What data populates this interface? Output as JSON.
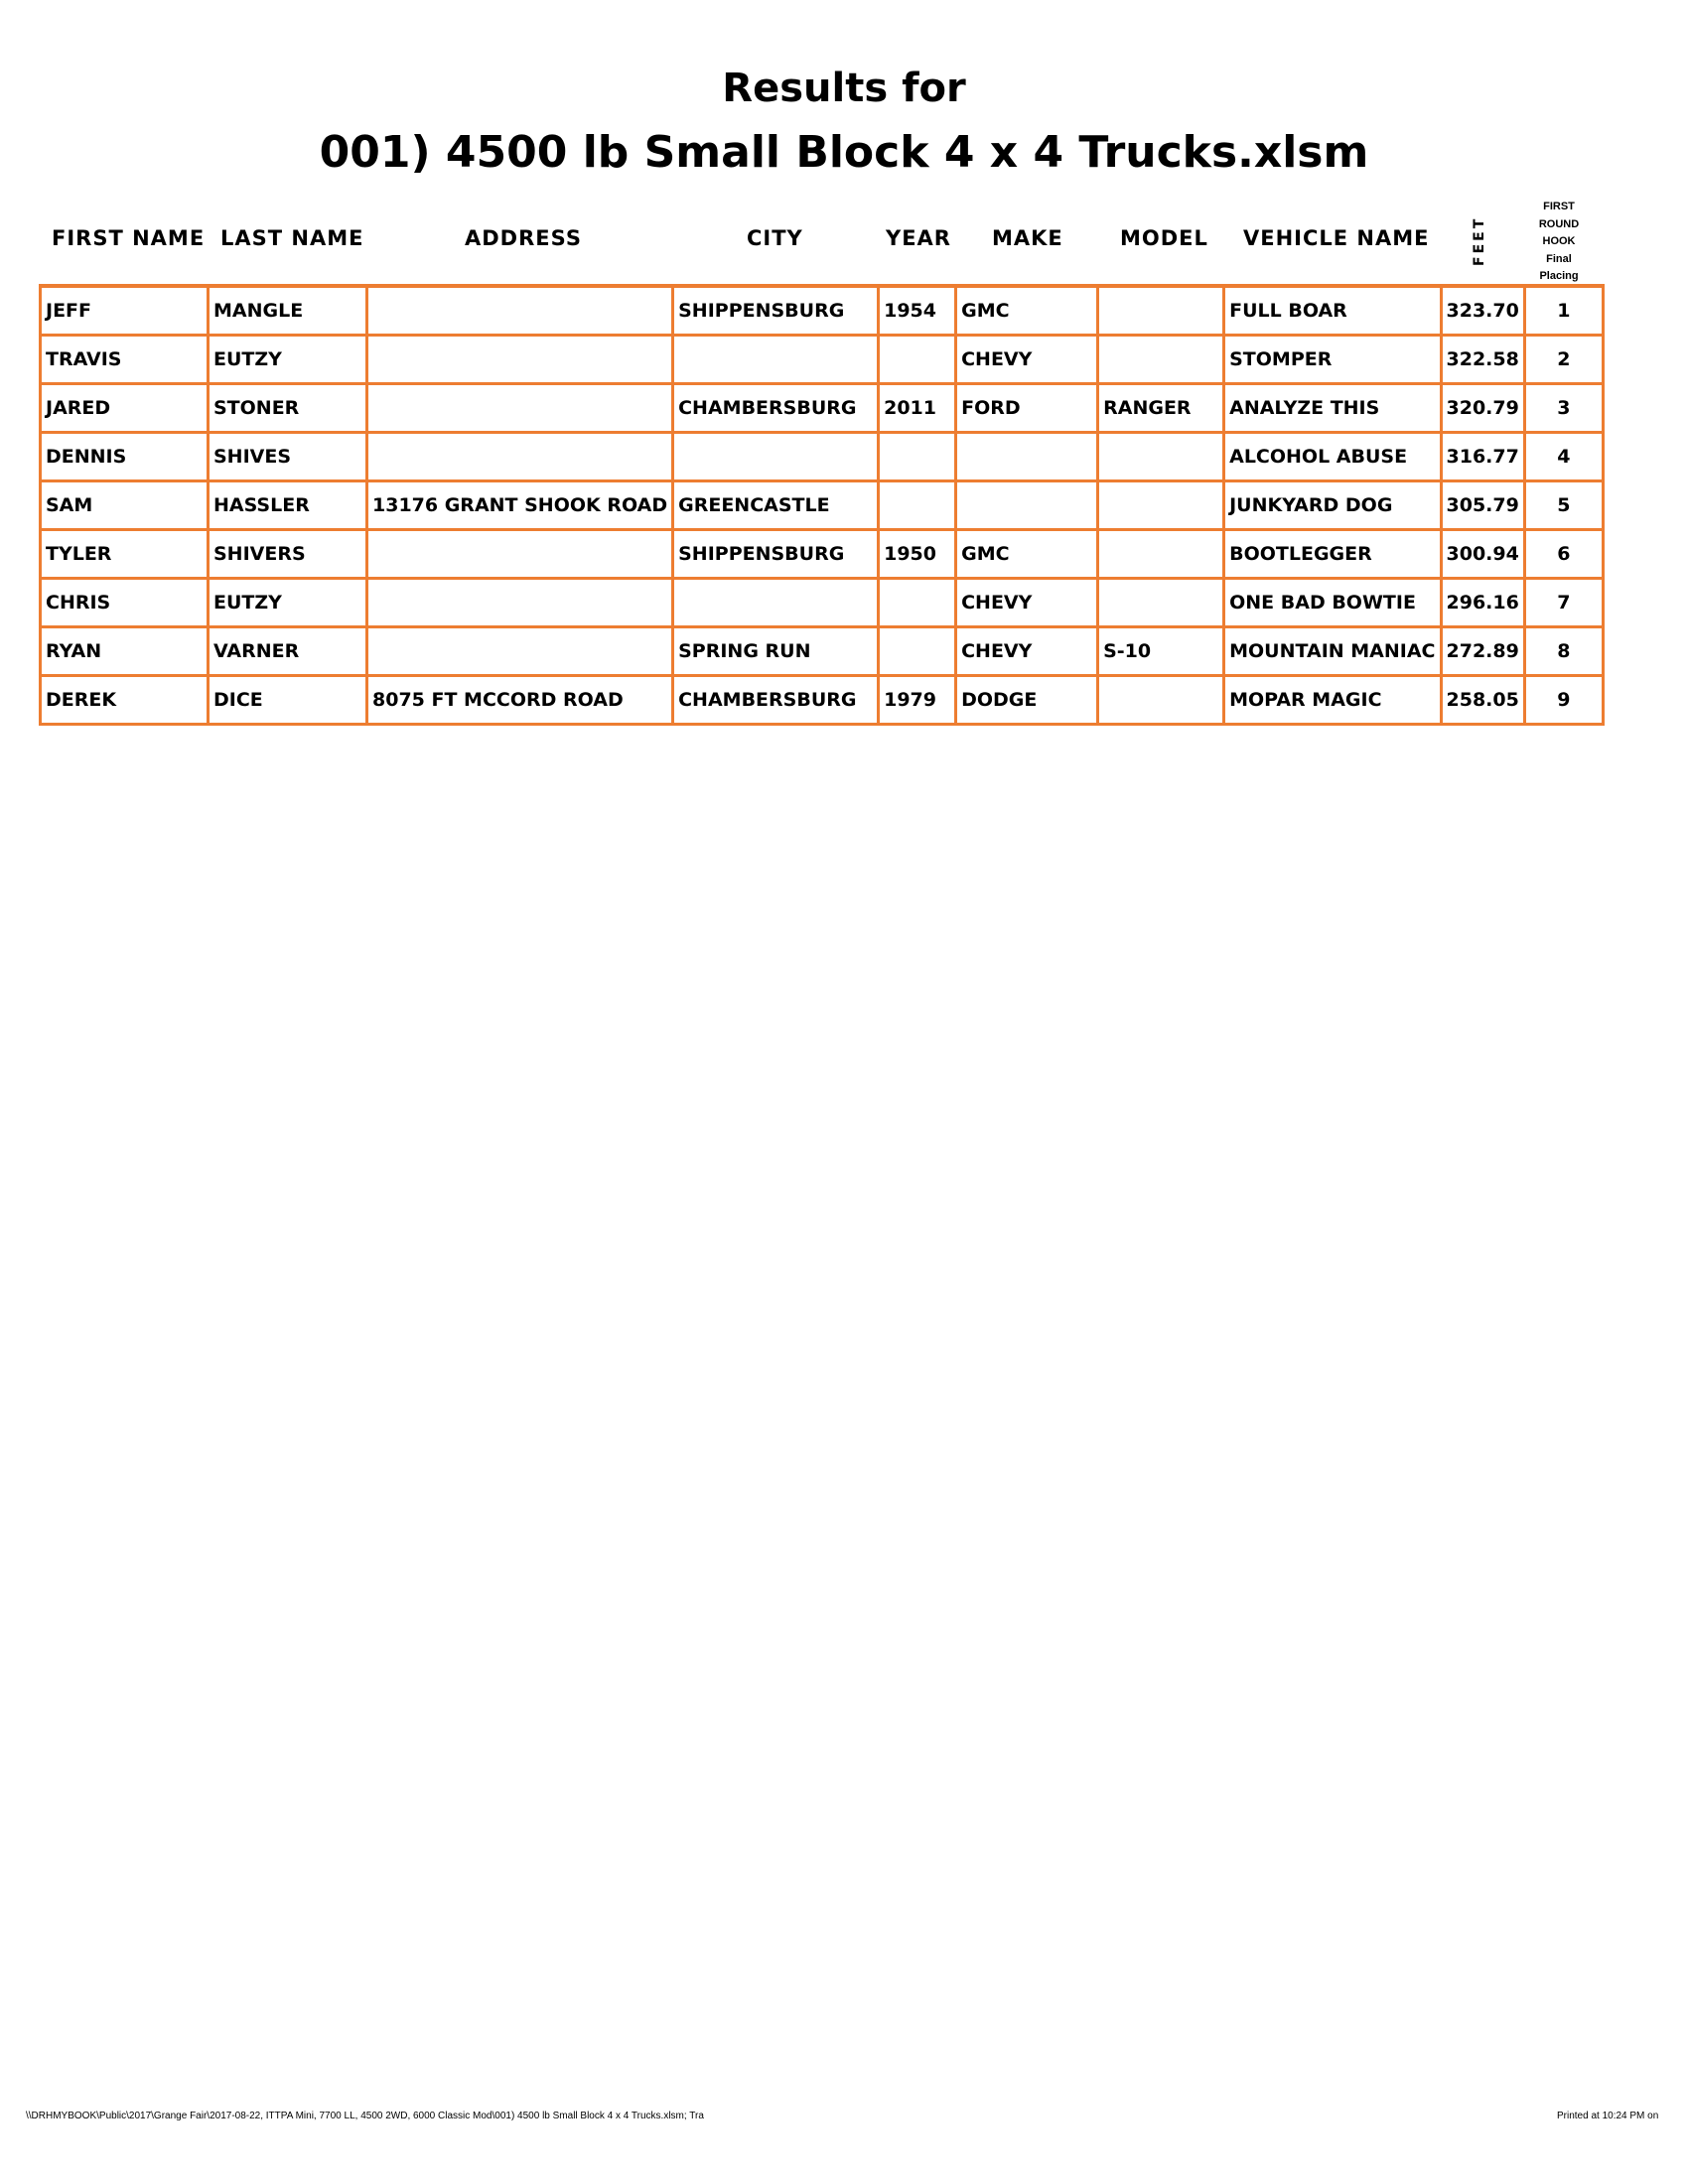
{
  "title_line1": "Results for",
  "title_line2": "001) 4500 lb Small Block 4 x 4 Trucks.xlsm",
  "headers": {
    "first_name": "FIRST NAME",
    "last_name": "LAST NAME",
    "address": "ADDRESS",
    "city": "CITY",
    "year": "YEAR",
    "make": "MAKE",
    "model": "MODEL",
    "vehicle_name": "VEHICLE NAME",
    "feet": "FEET",
    "placing": [
      "FIRST",
      "ROUND",
      "HOOK",
      "Final",
      "Placing"
    ]
  },
  "accent_color": "#ed7d31",
  "rows": [
    [
      "JEFF",
      "MANGLE",
      "",
      "SHIPPENSBURG",
      "1954",
      "GMC",
      "",
      "FULL BOAR",
      "323.70",
      "1"
    ],
    [
      "TRAVIS",
      "EUTZY",
      "",
      "",
      "",
      "CHEVY",
      "",
      "STOMPER",
      "322.58",
      "2"
    ],
    [
      "JARED",
      "STONER",
      "",
      "CHAMBERSBURG",
      "2011",
      "FORD",
      "RANGER",
      "ANALYZE THIS",
      "320.79",
      "3"
    ],
    [
      "DENNIS",
      "SHIVES",
      "",
      "",
      "",
      "",
      "",
      "ALCOHOL ABUSE",
      "316.77",
      "4"
    ],
    [
      "SAM",
      "HASSLER",
      "13176 GRANT SHOOK ROAD",
      "GREENCASTLE",
      "",
      "",
      "",
      "JUNKYARD DOG",
      "305.79",
      "5"
    ],
    [
      "TYLER",
      "SHIVERS",
      "",
      "SHIPPENSBURG",
      "1950",
      "GMC",
      "",
      "BOOTLEGGER",
      "300.94",
      "6"
    ],
    [
      "CHRIS",
      "EUTZY",
      "",
      "",
      "",
      "CHEVY",
      "",
      "ONE BAD BOWTIE",
      "296.16",
      "7"
    ],
    [
      "RYAN",
      "VARNER",
      "",
      "SPRING RUN",
      "",
      "CHEVY",
      "S-10",
      "MOUNTAIN MANIAC",
      "272.89",
      "8"
    ],
    [
      "DEREK",
      "DICE",
      "8075 FT MCCORD ROAD",
      "CHAMBERSBURG",
      "1979",
      "DODGE",
      "",
      "MOPAR MAGIC",
      "258.05",
      "9"
    ]
  ],
  "footer_left": "\\\\DRHMYBOOK\\Public\\2017\\Grange Fair\\2017-08-22, ITTPA Mini, 7700 LL, 4500 2WD, 6000 Classic Mod\\001) 4500 lb Small Block 4 x 4 Trucks.xlsm;  Tra",
  "footer_right": "Printed at 10:24 PM on"
}
